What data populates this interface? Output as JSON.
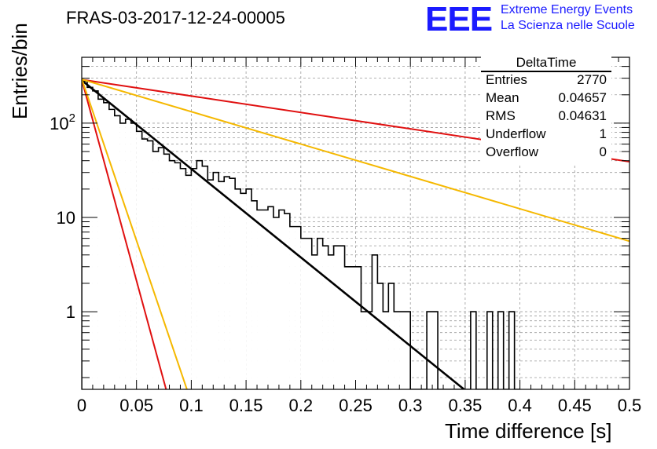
{
  "header": {
    "run_title": "FRAS-03-2017-12-24-00005",
    "logo_text": "EEE",
    "logo_line1": "Extreme Energy Events",
    "logo_line2": "La Scienza nelle Scuole"
  },
  "stats_box": {
    "title": "DeltaTime",
    "rows": [
      {
        "label": "Entries",
        "value": "2770"
      },
      {
        "label": "Mean",
        "value": "0.04657"
      },
      {
        "label": "RMS",
        "value": "0.04631"
      },
      {
        "label": "Underflow",
        "value": "1"
      },
      {
        "label": "Overflow",
        "value": "0"
      }
    ]
  },
  "colors": {
    "histogram": "#000000",
    "fit": "#000000",
    "red_curve": "#e01010",
    "orange_curve": "#f5b800",
    "grid": "#9a9a9a",
    "logo": "#1b1bff"
  },
  "chart_data": {
    "type": "histogram",
    "xlabel": "Time difference [s]",
    "ylabel": "Entries/bin",
    "xlim": [
      0,
      0.5
    ],
    "ylim": [
      0.15,
      500
    ],
    "yscale": "log",
    "grid": true,
    "bin_width": 0.005,
    "x_ticks": [
      "0",
      "0.05",
      "0.1",
      "0.15",
      "0.2",
      "0.25",
      "0.3",
      "0.35",
      "0.4",
      "0.45",
      "0.5"
    ],
    "y_ticks": [
      "1",
      "10",
      "10^2"
    ],
    "bins": [
      {
        "x0": 0.0,
        "y": 280
      },
      {
        "x0": 0.005,
        "y": 240
      },
      {
        "x0": 0.01,
        "y": 220
      },
      {
        "x0": 0.015,
        "y": 180
      },
      {
        "x0": 0.02,
        "y": 165
      },
      {
        "x0": 0.025,
        "y": 140
      },
      {
        "x0": 0.03,
        "y": 120
      },
      {
        "x0": 0.035,
        "y": 100
      },
      {
        "x0": 0.04,
        "y": 110
      },
      {
        "x0": 0.045,
        "y": 100
      },
      {
        "x0": 0.05,
        "y": 82
      },
      {
        "x0": 0.055,
        "y": 68
      },
      {
        "x0": 0.06,
        "y": 65
      },
      {
        "x0": 0.065,
        "y": 50
      },
      {
        "x0": 0.07,
        "y": 55
      },
      {
        "x0": 0.075,
        "y": 47
      },
      {
        "x0": 0.08,
        "y": 40
      },
      {
        "x0": 0.085,
        "y": 38
      },
      {
        "x0": 0.09,
        "y": 33
      },
      {
        "x0": 0.095,
        "y": 28
      },
      {
        "x0": 0.1,
        "y": 33
      },
      {
        "x0": 0.105,
        "y": 40
      },
      {
        "x0": 0.11,
        "y": 35
      },
      {
        "x0": 0.115,
        "y": 25
      },
      {
        "x0": 0.12,
        "y": 30
      },
      {
        "x0": 0.125,
        "y": 24
      },
      {
        "x0": 0.13,
        "y": 27
      },
      {
        "x0": 0.135,
        "y": 26
      },
      {
        "x0": 0.14,
        "y": 20
      },
      {
        "x0": 0.145,
        "y": 18
      },
      {
        "x0": 0.15,
        "y": 20
      },
      {
        "x0": 0.155,
        "y": 15
      },
      {
        "x0": 0.16,
        "y": 12
      },
      {
        "x0": 0.165,
        "y": 12
      },
      {
        "x0": 0.17,
        "y": 13
      },
      {
        "x0": 0.175,
        "y": 10
      },
      {
        "x0": 0.18,
        "y": 12
      },
      {
        "x0": 0.185,
        "y": 11
      },
      {
        "x0": 0.19,
        "y": 8
      },
      {
        "x0": 0.195,
        "y": 8
      },
      {
        "x0": 0.2,
        "y": 6
      },
      {
        "x0": 0.205,
        "y": 6
      },
      {
        "x0": 0.21,
        "y": 4
      },
      {
        "x0": 0.215,
        "y": 6
      },
      {
        "x0": 0.22,
        "y": 5
      },
      {
        "x0": 0.225,
        "y": 4
      },
      {
        "x0": 0.23,
        "y": 5
      },
      {
        "x0": 0.235,
        "y": 5
      },
      {
        "x0": 0.24,
        "y": 3
      },
      {
        "x0": 0.245,
        "y": 3
      },
      {
        "x0": 0.25,
        "y": 3
      },
      {
        "x0": 0.255,
        "y": 1
      },
      {
        "x0": 0.26,
        "y": 1
      },
      {
        "x0": 0.265,
        "y": 4
      },
      {
        "x0": 0.27,
        "y": 2
      },
      {
        "x0": 0.275,
        "y": 1
      },
      {
        "x0": 0.28,
        "y": 2
      },
      {
        "x0": 0.285,
        "y": 1
      },
      {
        "x0": 0.29,
        "y": 1
      },
      {
        "x0": 0.295,
        "y": 1
      },
      {
        "x0": 0.3,
        "y": 0
      },
      {
        "x0": 0.305,
        "y": 0
      },
      {
        "x0": 0.31,
        "y": 0
      },
      {
        "x0": 0.315,
        "y": 1
      },
      {
        "x0": 0.32,
        "y": 1
      },
      {
        "x0": 0.325,
        "y": 0
      },
      {
        "x0": 0.33,
        "y": 0
      },
      {
        "x0": 0.335,
        "y": 0
      },
      {
        "x0": 0.34,
        "y": 0
      },
      {
        "x0": 0.345,
        "y": 0
      },
      {
        "x0": 0.35,
        "y": 0
      },
      {
        "x0": 0.355,
        "y": 1
      },
      {
        "x0": 0.36,
        "y": 0
      },
      {
        "x0": 0.365,
        "y": 0
      },
      {
        "x0": 0.37,
        "y": 1
      },
      {
        "x0": 0.375,
        "y": 0
      },
      {
        "x0": 0.38,
        "y": 1
      },
      {
        "x0": 0.385,
        "y": 0
      },
      {
        "x0": 0.39,
        "y": 1
      },
      {
        "x0": 0.395,
        "y": 0
      }
    ],
    "curves": [
      {
        "color_key": "fit",
        "width": 2.6,
        "points": [
          [
            0.0,
            285
          ],
          [
            0.349,
            0.15
          ]
        ]
      },
      {
        "color_key": "red_curve",
        "width": 2,
        "points": [
          [
            0.0,
            290
          ],
          [
            0.5,
            39
          ]
        ]
      },
      {
        "color_key": "orange_curve",
        "width": 2,
        "points": [
          [
            0.0,
            292
          ],
          [
            0.5,
            5.6
          ]
        ]
      },
      {
        "color_key": "red_curve",
        "width": 2,
        "points": [
          [
            0.0,
            290
          ],
          [
            0.077,
            0.15
          ]
        ]
      },
      {
        "color_key": "orange_curve",
        "width": 2,
        "points": [
          [
            0.0,
            295
          ],
          [
            0.096,
            0.15
          ]
        ]
      }
    ]
  }
}
